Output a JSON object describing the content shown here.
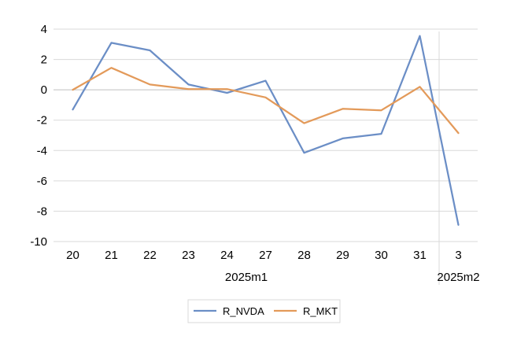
{
  "chart_data": {
    "type": "line",
    "x": [
      "20",
      "21",
      "22",
      "23",
      "24",
      "27",
      "28",
      "29",
      "30",
      "31",
      "3"
    ],
    "groups": [
      {
        "label": "2025m1",
        "from": 0,
        "to": 9
      },
      {
        "label": "2025m2",
        "from": 10,
        "to": 10
      }
    ],
    "series": [
      {
        "name": "R_NVDA",
        "color": "#6b8ec6",
        "values": [
          -1.3,
          3.1,
          2.6,
          0.35,
          -0.2,
          0.6,
          -4.15,
          -3.2,
          -2.9,
          3.55,
          -8.9
        ]
      },
      {
        "name": "R_MKT",
        "color": "#e39a5a",
        "values": [
          0.0,
          1.45,
          0.35,
          0.05,
          0.05,
          -0.5,
          -2.2,
          -1.25,
          -1.35,
          0.2,
          -2.85
        ]
      }
    ],
    "yticks": [
      "4",
      "2",
      "0",
      "-2",
      "-4",
      "-6",
      "-8",
      "-10"
    ],
    "ylim": [
      -10,
      4
    ],
    "grid": true,
    "legend": "bottom",
    "gridline_color": "#d9d9d9",
    "zero_line_color": "#bfbfbf"
  }
}
